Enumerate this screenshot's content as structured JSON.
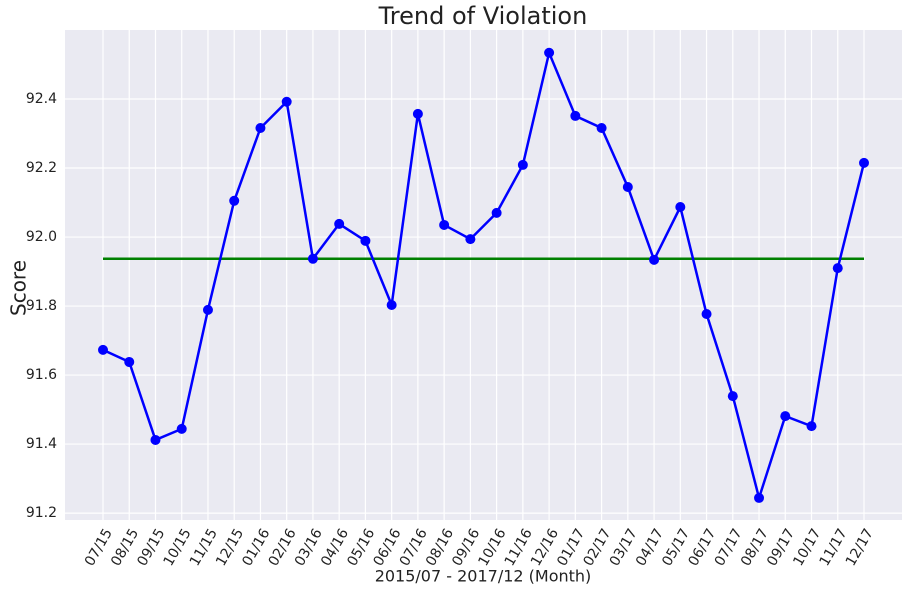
{
  "chart_data": {
    "type": "line",
    "title": "Trend of Violation",
    "x_label": "2015/07 - 2017/12 (Month)",
    "y_label": "Score",
    "categories": [
      "07/15",
      "08/15",
      "09/15",
      "10/15",
      "11/15",
      "12/15",
      "01/16",
      "02/16",
      "03/16",
      "04/16",
      "05/16",
      "06/16",
      "07/16",
      "08/16",
      "09/16",
      "10/16",
      "11/16",
      "12/16",
      "01/17",
      "02/17",
      "03/17",
      "04/17",
      "05/17",
      "06/17",
      "07/17",
      "08/17",
      "09/17",
      "10/17",
      "11/17",
      "12/17"
    ],
    "series": [
      {
        "color": "#0000ff",
        "values": [
          91.673,
          91.638,
          91.412,
          91.444,
          91.789,
          92.105,
          92.316,
          92.392,
          91.937,
          92.038,
          91.989,
          91.803,
          92.357,
          92.035,
          91.994,
          92.07,
          92.209,
          92.534,
          92.351,
          92.316,
          92.145,
          91.934,
          92.087,
          91.777,
          91.539,
          91.244,
          91.481,
          91.452,
          91.91,
          92.215
        ]
      }
    ],
    "reference_line": {
      "value": 91.937,
      "color": "#008000"
    },
    "ylim": [
      91.18,
      92.6
    ],
    "yticks": [
      {
        "value": 91.2,
        "label": "91.2"
      },
      {
        "value": 91.4,
        "label": "91.4"
      },
      {
        "value": 91.6,
        "label": "91.6"
      },
      {
        "value": 91.8,
        "label": "91.8"
      },
      {
        "value": 92.0,
        "label": "92.0"
      },
      {
        "value": 92.2,
        "label": "92.2"
      },
      {
        "value": 92.4,
        "label": "92.4"
      }
    ],
    "grid": true,
    "background": "#eaeaf2"
  }
}
